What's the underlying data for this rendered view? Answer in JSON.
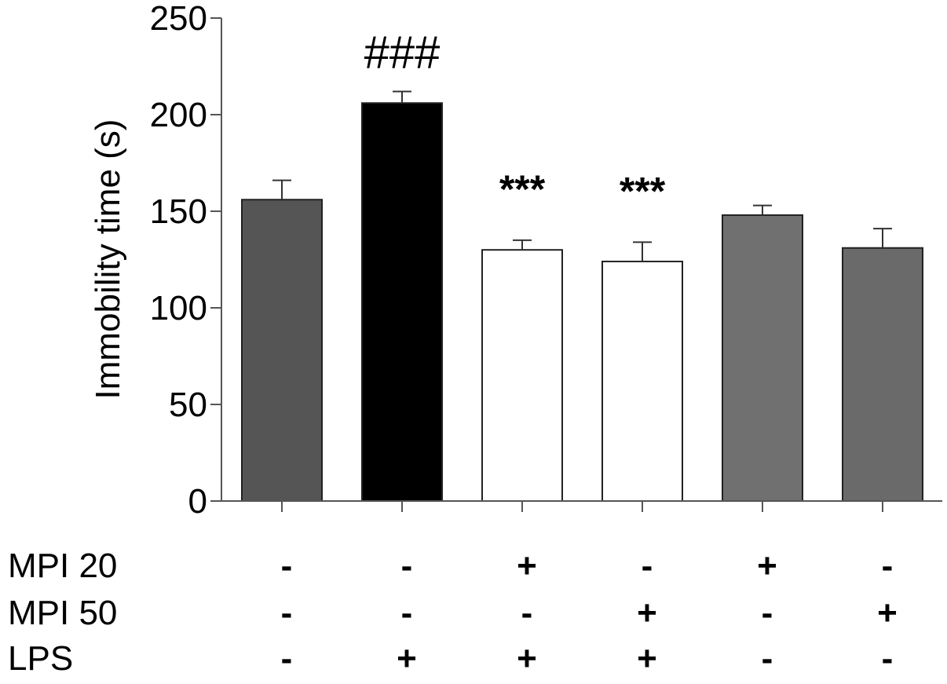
{
  "chart_data": {
    "type": "bar",
    "ylabel": "Immobility time (s)",
    "ylim": [
      0,
      250
    ],
    "yticks": [
      0,
      50,
      100,
      150,
      200,
      250
    ],
    "values": [
      156,
      206,
      130,
      124,
      148,
      131
    ],
    "errors": [
      10,
      6,
      5,
      10,
      5,
      10
    ],
    "colors": [
      "#555555",
      "#000000",
      "#ffffff",
      "#ffffff",
      "#707070",
      "#6a6a6a"
    ],
    "annotations": [
      "",
      "###",
      "***",
      "***",
      "",
      ""
    ],
    "conditions": [
      {
        "label": "MPI 20",
        "signs": [
          "-",
          "-",
          "+",
          "-",
          "+",
          "-"
        ]
      },
      {
        "label": "MPI 50",
        "signs": [
          "-",
          "-",
          "-",
          "+",
          "-",
          "+"
        ]
      },
      {
        "label": "LPS",
        "signs": [
          "-",
          "+",
          "+",
          "+",
          "-",
          "-"
        ]
      }
    ]
  }
}
